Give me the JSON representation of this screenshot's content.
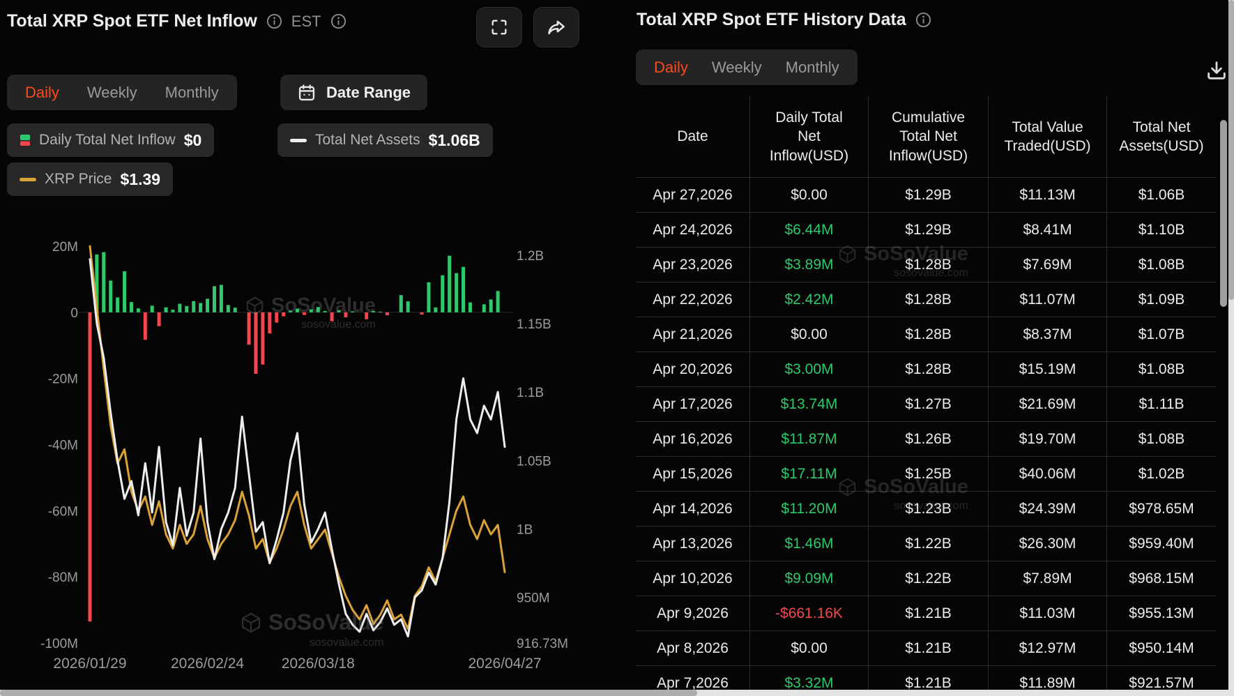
{
  "left_panel": {
    "title": "Total XRP Spot ETF Net Inflow",
    "timezone": "EST",
    "tabs": [
      "Daily",
      "Weekly",
      "Monthly"
    ],
    "active_tab": "Daily",
    "date_range_label": "Date Range",
    "legend": [
      {
        "label": "Daily Total Net Inflow",
        "value": "$0"
      },
      {
        "label": "Total Net Assets",
        "value": "$1.06B"
      },
      {
        "label": "XRP Price",
        "value": "$1.39"
      }
    ]
  },
  "right_panel": {
    "title": "Total XRP Spot ETF History Data",
    "tabs": [
      "Daily",
      "Weekly",
      "Monthly"
    ],
    "active_tab": "Daily",
    "table": {
      "columns": [
        "Date",
        "Daily Total Net Inflow(USD)",
        "Cumulative Total Net Inflow(USD)",
        "Total Value Traded(USD)",
        "Total Net Assets(USD)"
      ],
      "rows": [
        [
          "Apr 27,2026",
          "$0.00",
          "$1.29B",
          "$11.13M",
          "$1.06B"
        ],
        [
          "Apr 24,2026",
          "$6.44M",
          "$1.29B",
          "$8.41M",
          "$1.10B"
        ],
        [
          "Apr 23,2026",
          "$3.89M",
          "$1.28B",
          "$7.69M",
          "$1.08B"
        ],
        [
          "Apr 22,2026",
          "$2.42M",
          "$1.28B",
          "$11.07M",
          "$1.09B"
        ],
        [
          "Apr 21,2026",
          "$0.00",
          "$1.28B",
          "$8.37M",
          "$1.07B"
        ],
        [
          "Apr 20,2026",
          "$3.00M",
          "$1.28B",
          "$15.19M",
          "$1.08B"
        ],
        [
          "Apr 17,2026",
          "$13.74M",
          "$1.27B",
          "$21.69M",
          "$1.11B"
        ],
        [
          "Apr 16,2026",
          "$11.87M",
          "$1.26B",
          "$19.70M",
          "$1.08B"
        ],
        [
          "Apr 15,2026",
          "$17.11M",
          "$1.25B",
          "$40.06M",
          "$1.02B"
        ],
        [
          "Apr 14,2026",
          "$11.20M",
          "$1.23B",
          "$24.39M",
          "$978.65M"
        ],
        [
          "Apr 13,2026",
          "$1.46M",
          "$1.22B",
          "$26.30M",
          "$959.40M"
        ],
        [
          "Apr 10,2026",
          "$9.09M",
          "$1.22B",
          "$7.89M",
          "$968.15M"
        ],
        [
          "Apr 9,2026",
          "-$661.16K",
          "$1.21B",
          "$11.03M",
          "$955.13M"
        ],
        [
          "Apr 8,2026",
          "$0.00",
          "$1.21B",
          "$12.97M",
          "$950.14M"
        ],
        [
          "Apr 7,2026",
          "$3.32M",
          "$1.21B",
          "$11.89M",
          "$921.57M"
        ]
      ]
    }
  },
  "watermark": {
    "brand": "SoSoValue",
    "domain": "sosovalue.com"
  },
  "icons": {
    "info-icon": "i in circle",
    "fullscreen-icon": "corner brackets",
    "share-icon": "forward arrow",
    "calendar-icon": "calendar",
    "download-icon": "arrow into tray"
  },
  "chart_data": {
    "type": "combo",
    "title": "Total XRP Spot ETF Net Inflow",
    "x": [
      "2026/01/29",
      "2026/01/30",
      "2026/02/02",
      "2026/02/03",
      "2026/02/04",
      "2026/02/05",
      "2026/02/06",
      "2026/02/09",
      "2026/02/10",
      "2026/02/11",
      "2026/02/12",
      "2026/02/13",
      "2026/02/17",
      "2026/02/18",
      "2026/02/19",
      "2026/02/20",
      "2026/02/23",
      "2026/02/24",
      "2026/02/25",
      "2026/02/26",
      "2026/02/27",
      "2026/03/02",
      "2026/03/03",
      "2026/03/04",
      "2026/03/05",
      "2026/03/06",
      "2026/03/09",
      "2026/03/10",
      "2026/03/11",
      "2026/03/12",
      "2026/03/13",
      "2026/03/16",
      "2026/03/17",
      "2026/03/18",
      "2026/03/19",
      "2026/03/20",
      "2026/03/23",
      "2026/03/24",
      "2026/03/25",
      "2026/03/26",
      "2026/03/27",
      "2026/03/30",
      "2026/03/31",
      "2026/04/01",
      "2026/04/02",
      "2026/04/06",
      "2026/04/07",
      "2026/04/08",
      "2026/04/09",
      "2026/04/10",
      "2026/04/13",
      "2026/04/14",
      "2026/04/15",
      "2026/04/16",
      "2026/04/17",
      "2026/04/20",
      "2026/04/21",
      "2026/04/22",
      "2026/04/23",
      "2026/04/24",
      "2026/04/27"
    ],
    "x_ticks": [
      {
        "i": 0,
        "label": "2026/01/29"
      },
      {
        "i": 17,
        "label": "2026/02/24"
      },
      {
        "i": 33,
        "label": "2026/03/18"
      },
      {
        "i": 60,
        "label": "2026/04/27"
      }
    ],
    "left_axis": {
      "unit": "USD millions",
      "range": [
        -100,
        20
      ],
      "ticks": [
        {
          "v": 20,
          "label": "20M"
        },
        {
          "v": 0,
          "label": "0"
        },
        {
          "v": -20,
          "label": "-20M"
        },
        {
          "v": -40,
          "label": "-40M"
        },
        {
          "v": -60,
          "label": "-60M"
        },
        {
          "v": -80,
          "label": "-80M"
        },
        {
          "v": -100,
          "label": "-100M"
        }
      ]
    },
    "right_axis": {
      "unit": "USD millions",
      "range": [
        916.73,
        1206.5
      ],
      "ticks": [
        {
          "v": 1200,
          "label": "1.2B"
        },
        {
          "v": 1150,
          "label": "1.15B"
        },
        {
          "v": 1100,
          "label": "1.1B"
        },
        {
          "v": 1050,
          "label": "1.05B"
        },
        {
          "v": 1000,
          "label": "1B"
        },
        {
          "v": 950,
          "label": "950M"
        },
        {
          "v": 916.73,
          "label": "916.73M"
        }
      ]
    },
    "price_axis": {
      "visible": false,
      "range": [
        1.24,
        2.08
      ]
    },
    "series": [
      {
        "name": "Daily Total Net Inflow",
        "type": "bar",
        "axis": "left",
        "values": [
          -93.5,
          17.5,
          18.2,
          9.6,
          4.5,
          12.4,
          3.1,
          1.2,
          -8.3,
          2.0,
          -4.2,
          1.5,
          0.8,
          2.6,
          1.9,
          3.4,
          2.8,
          4.1,
          7.9,
          8.3,
          2.2,
          1.4,
          0,
          -9.8,
          -18.6,
          -15.8,
          -6.4,
          -3.1,
          -1.2,
          0.5,
          1.1,
          -0.8,
          0.9,
          1.6,
          0.4,
          -2.7,
          0.6,
          -1.5,
          0.3,
          0,
          -2.1,
          0.4,
          0.2,
          -0.9,
          0,
          5.2,
          3.32,
          0,
          -0.66,
          9.09,
          1.46,
          11.2,
          17.11,
          11.87,
          13.74,
          3.0,
          0,
          2.42,
          3.89,
          6.44,
          0
        ]
      },
      {
        "name": "Total Net Assets",
        "type": "line",
        "axis": "right",
        "values": [
          1197,
          1150,
          1125,
          1085,
          1050,
          1022,
          1035,
          1010,
          1048,
          1012,
          1060,
          1005,
          988,
          1030,
          995,
          1012,
          1066,
          1005,
          978,
          1000,
          1012,
          1030,
          1082,
          1040,
          998,
          1005,
          975,
          992,
          1012,
          1050,
          1070,
          1018,
          990,
          1000,
          1012,
          985,
          960,
          938,
          930,
          925,
          938,
          926,
          932,
          942,
          930,
          934,
          921.57,
          950.14,
          955.13,
          968.15,
          959.4,
          978.65,
          1020,
          1080,
          1110,
          1080,
          1070,
          1090,
          1080,
          1100,
          1060
        ]
      },
      {
        "name": "XRP Price",
        "type": "line",
        "axis": "price",
        "values": [
          2.08,
          1.95,
          1.82,
          1.7,
          1.62,
          1.65,
          1.56,
          1.52,
          1.55,
          1.49,
          1.54,
          1.47,
          1.44,
          1.49,
          1.45,
          1.47,
          1.53,
          1.46,
          1.42,
          1.45,
          1.47,
          1.5,
          1.56,
          1.51,
          1.44,
          1.46,
          1.41,
          1.44,
          1.48,
          1.53,
          1.56,
          1.49,
          1.44,
          1.46,
          1.48,
          1.43,
          1.38,
          1.34,
          1.31,
          1.29,
          1.32,
          1.28,
          1.3,
          1.33,
          1.29,
          1.3,
          1.27,
          1.34,
          1.36,
          1.4,
          1.37,
          1.42,
          1.47,
          1.52,
          1.55,
          1.49,
          1.46,
          1.5,
          1.47,
          1.49,
          1.39
        ]
      }
    ],
    "legend_position": "top",
    "grid": "zero-line-only",
    "colors": {
      "green": "#2ec96a",
      "red": "#f4464d",
      "assets": "#eeeeee",
      "price": "#dba238"
    }
  }
}
